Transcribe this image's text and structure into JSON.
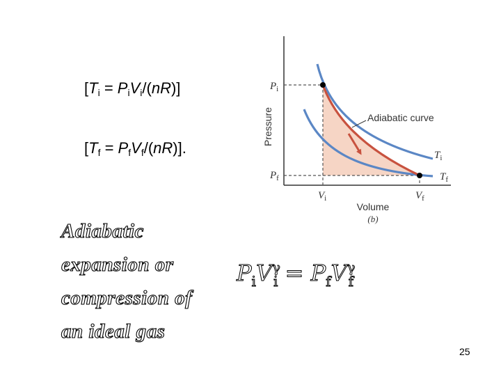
{
  "equations": {
    "ti": {
      "open": "[",
      "t": "T",
      "t_sub": "i",
      "eq": " = ",
      "p": "P",
      "p_sub": "i",
      "v": "V",
      "v_sub": "i",
      "tail": "/(",
      "nr": "nR",
      "close": ")]"
    },
    "tf": {
      "open": "[",
      "t": "T",
      "t_sub": "f",
      "eq": " = ",
      "p": "P",
      "p_sub": "f",
      "v": "V",
      "v_sub": "f",
      "tail": "/(",
      "nr": "nR",
      "close": ")]."
    }
  },
  "diagram": {
    "y_axis_label": "Pressure",
    "x_axis_label": "Volume",
    "sub_label": "(b)",
    "curve_label": "Adiabatic curve",
    "p_i": {
      "sym": "P",
      "sub": "i"
    },
    "p_f": {
      "sym": "P",
      "sub": "f"
    },
    "v_i": {
      "sym": "V",
      "sub": "i"
    },
    "v_f": {
      "sym": "V",
      "sub": "f"
    },
    "t_i": {
      "sym": "T",
      "sub": "i"
    },
    "t_f": {
      "sym": "T",
      "sub": "f"
    },
    "colors": {
      "isotherm": "#5b87c5",
      "adiabat": "#c8523f",
      "fill": "#f6d5c5",
      "axis": "#333333"
    }
  },
  "caption": [
    "Adiabatic",
    "expansion or",
    "compression of",
    "an ideal gas"
  ],
  "adiabatic_equation": {
    "p": "P",
    "i": "i",
    "v": "V",
    "gamma": "γ",
    "equals": " = ",
    "f": "f"
  },
  "page_number": "25"
}
